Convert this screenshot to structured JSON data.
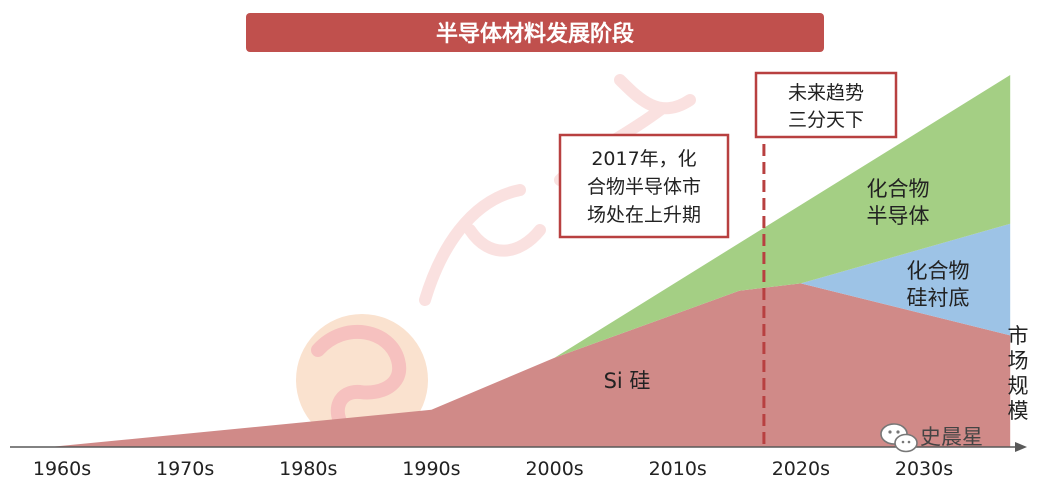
{
  "colors": {
    "title_bg": "#c0504d",
    "si": "#d08a88",
    "compound": "#a4cf84",
    "compound_si": "#9dc3e6",
    "dashed": "#b84040",
    "axis": "#595959",
    "box_border": "#b84040",
    "watermark": "#f4c7c5"
  },
  "chart_data": {
    "type": "area",
    "title": "半导体材料发展阶段",
    "categories": [
      "1960s",
      "1970s",
      "1980s",
      "1990s",
      "2000s",
      "2010s",
      "2020s",
      "2030s"
    ],
    "x": [
      1960,
      1970,
      1980,
      1990,
      2000,
      2010,
      2020,
      2030
    ],
    "xlim": [
      1959,
      2038
    ],
    "ylim": [
      0,
      100
    ],
    "ylabel": "市场规模",
    "stacked": true,
    "series": [
      {
        "name": "Si 硅",
        "color": "#d08a88",
        "points": [
          [
            1959,
            0
          ],
          [
            1990,
            10
          ],
          [
            2000,
            24
          ],
          [
            2010,
            36
          ],
          [
            2015,
            42
          ],
          [
            2020,
            44
          ],
          [
            2037,
            30
          ]
        ]
      },
      {
        "name": "化合物衬底",
        "color": "#9dc3e6",
        "points": [
          [
            2020,
            44
          ],
          [
            2037,
            60
          ]
        ]
      },
      {
        "name": "化合物半导体",
        "color": "#a4cf84",
        "points": [
          [
            2000,
            24
          ],
          [
            2037,
            100
          ]
        ]
      }
    ],
    "grid": false,
    "marker_year": 2017
  },
  "annotations": {
    "box_2017": [
      "2017年，化",
      "合物半导体市",
      "场处在上升期"
    ],
    "box_future": [
      "未来趋势",
      "三分天下"
    ],
    "label_si": "Si 硅",
    "label_compound": [
      "化合物",
      "半导体"
    ],
    "label_substrate": [
      "化合物",
      "硅衬底"
    ]
  },
  "watermark": {
    "brand": "史晨星",
    "icon": "wechat-icon"
  }
}
